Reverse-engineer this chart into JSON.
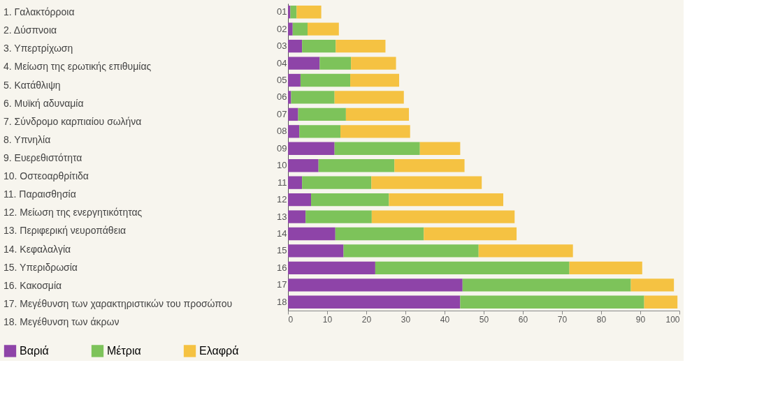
{
  "chart_data": {
    "type": "bar",
    "orientation": "horizontal",
    "stacked": true,
    "categories": [
      "01",
      "02",
      "03",
      "04",
      "05",
      "06",
      "07",
      "08",
      "09",
      "10",
      "11",
      "12",
      "13",
      "14",
      "15",
      "16",
      "17",
      "18"
    ],
    "series": [
      {
        "name": "Βαριά",
        "color": "#8e44a8",
        "values": [
          0.6,
          1.2,
          3.6,
          8.1,
          3.2,
          0.8,
          2.6,
          2.9,
          11.9,
          7.8,
          3.6,
          5.9,
          4.5,
          12.1,
          14.2,
          22.3,
          44.6,
          44.0
        ]
      },
      {
        "name": "Μέτρια",
        "color": "#7dc35a",
        "values": [
          1.6,
          3.8,
          8.6,
          8.0,
          12.7,
          11.1,
          12.2,
          10.5,
          21.8,
          19.4,
          17.7,
          19.9,
          16.9,
          22.6,
          34.5,
          49.6,
          43.0,
          47.0
        ]
      },
      {
        "name": "Ελαφρά",
        "color": "#f5c242",
        "values": [
          6.3,
          8.0,
          12.7,
          11.5,
          12.5,
          17.7,
          16.1,
          17.8,
          10.3,
          17.9,
          28.2,
          29.2,
          36.5,
          23.7,
          24.1,
          18.6,
          11.0,
          8.5
        ]
      }
    ],
    "xlim": [
      0,
      100
    ],
    "xticks": [
      0,
      10,
      20,
      30,
      40,
      50,
      60,
      70,
      80,
      90,
      100
    ],
    "grid": false,
    "legend": "bottom",
    "annotations": [
      "1. Γαλακτόρροια",
      "2. Δύσπνοια",
      "3. Υπερτρίχωση",
      "4. Μείωση της ερωτικής επιθυμίας",
      "5. Κατάθλιψη",
      "6. Μυϊκή αδυναμία",
      "7. Σύνδρομο καρπιαίου σωλήνα",
      "8. Υπνηλία",
      "9. Ευερεθιστότητα",
      "10. Οστεοαρθρίτιδα",
      "11. Παραισθησία",
      "12. Μείωση της ενεργητικότητας",
      "13. Περιφερική νευροπάθεια",
      "14. Κεφαλαλγία",
      "15. Υπεριδρωσία",
      "16. Κακοσμία",
      "17. Μεγέθυνση των χαρακτηριστικών του προσώπου",
      "18. Μεγέθυνση των άκρων"
    ]
  }
}
